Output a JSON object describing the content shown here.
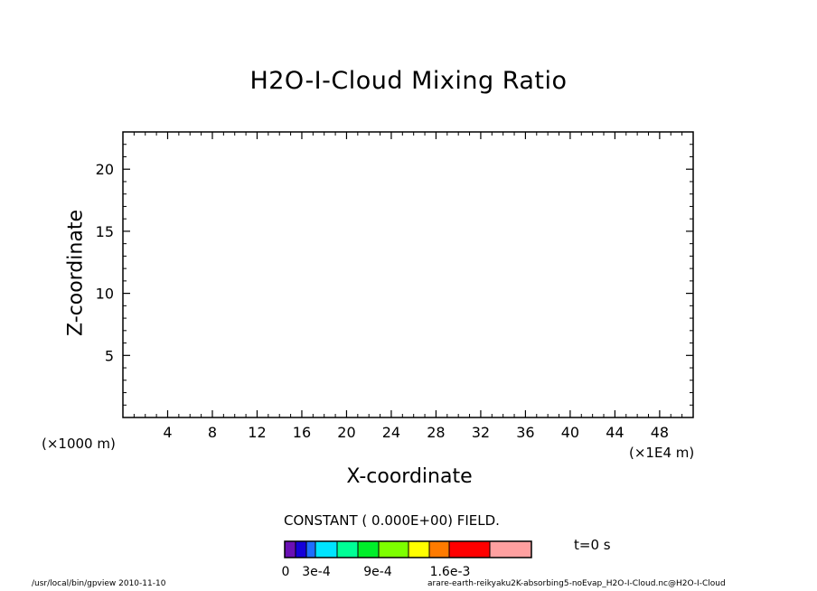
{
  "chart_data": {
    "type": "heatmap",
    "title": "H2O-I-Cloud Mixing Ratio",
    "xlabel": "X-coordinate",
    "ylabel": "Z-coordinate",
    "x_unit_left": "(×1000 m)",
    "x_unit_right": "(×1E4 m)",
    "xlim": [
      0,
      51
    ],
    "ylim": [
      0,
      23
    ],
    "x_ticks": [
      4,
      8,
      12,
      16,
      20,
      24,
      28,
      32,
      36,
      40,
      44,
      48
    ],
    "y_ticks": [
      5,
      10,
      15,
      20
    ],
    "grid": false,
    "field_note": "CONSTANT ( 0.000E+00) FIELD.",
    "time_label": "t=0 s",
    "colorbar": {
      "colors": [
        "#6a10b4",
        "#1500d8",
        "#1e6eff",
        "#00e4ff",
        "#00ff96",
        "#00ee2a",
        "#7dff00",
        "#ffff00",
        "#ff7b00",
        "#ff0000",
        "#ffa0a0"
      ],
      "tick_labels": [
        "0",
        "3e-4",
        "9e-4",
        "1.6e-3"
      ]
    }
  },
  "footer": {
    "left": "/usr/local/bin/gpview  2010-11-10",
    "right": "arare-earth-reikyaku2K-absorbing5-noEvap_H2O-I-Cloud.nc@H2O-I-Cloud"
  }
}
